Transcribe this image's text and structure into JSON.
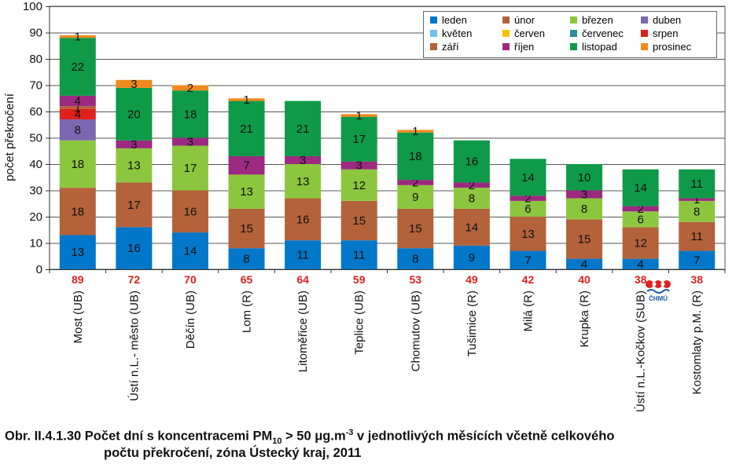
{
  "chart_data": {
    "type": "bar",
    "stacked": true,
    "ylabel": "počet překročení",
    "ylim": [
      0,
      100
    ],
    "yticks": [
      0,
      10,
      20,
      30,
      40,
      50,
      60,
      70,
      80,
      90,
      100
    ],
    "grid": true,
    "legend_position": "top-right",
    "categories": [
      "Most (UB)",
      "Ústí n.L.- město (UB)",
      "Děčín (UB)",
      "Lom (R)",
      "Litoměřice (UB)",
      "Teplice (UB)",
      "Chomutov (UB)",
      "Tušimice (R)",
      "Milá (R)",
      "Krupka (R)",
      "Ústí n.L.-Kočkov (SUB)",
      "Kostomlaty p.M. (R)"
    ],
    "totals": [
      89,
      72,
      70,
      65,
      64,
      59,
      53,
      49,
      42,
      40,
      38,
      38
    ],
    "totals_color": "#e02020",
    "series": [
      {
        "name": "leden",
        "color": "#0077c8",
        "values": [
          13,
          16,
          14,
          8,
          11,
          11,
          8,
          9,
          7,
          4,
          4,
          7
        ]
      },
      {
        "name": "únor",
        "color": "#b3623a",
        "values": [
          18,
          17,
          16,
          15,
          16,
          15,
          15,
          14,
          13,
          15,
          12,
          11
        ]
      },
      {
        "name": "březen",
        "color": "#8cc63f",
        "values": [
          18,
          13,
          17,
          13,
          13,
          12,
          9,
          8,
          6,
          8,
          6,
          8
        ]
      },
      {
        "name": "duben",
        "color": "#7b68b0",
        "values": [
          8,
          0,
          0,
          0,
          0,
          0,
          0,
          0,
          0,
          0,
          0,
          0
        ]
      },
      {
        "name": "květen",
        "color": "#6ec1e8",
        "values": [
          0,
          0,
          0,
          0,
          0,
          0,
          0,
          0,
          0,
          0,
          0,
          0
        ]
      },
      {
        "name": "červen",
        "color": "#f5c400",
        "values": [
          0,
          0,
          0,
          0,
          0,
          0,
          0,
          0,
          0,
          0,
          0,
          0
        ]
      },
      {
        "name": "červenec",
        "color": "#2e8b9a",
        "values": [
          0,
          0,
          0,
          0,
          0,
          0,
          0,
          0,
          0,
          0,
          0,
          0
        ]
      },
      {
        "name": "srpen",
        "color": "#e0201b",
        "values": [
          4,
          0,
          0,
          0,
          0,
          0,
          0,
          0,
          0,
          0,
          0,
          0
        ]
      },
      {
        "name": "září",
        "color": "#b3623a",
        "values": [
          1,
          0,
          0,
          0,
          0,
          0,
          0,
          0,
          0,
          0,
          0,
          0
        ]
      },
      {
        "name": "říjen",
        "color": "#9b2a80",
        "values": [
          4,
          3,
          3,
          7,
          3,
          3,
          2,
          2,
          2,
          3,
          2,
          1
        ]
      },
      {
        "name": "listopad",
        "color": "#0e9a48",
        "values": [
          22,
          20,
          18,
          21,
          21,
          17,
          18,
          16,
          14,
          10,
          14,
          11
        ]
      },
      {
        "name": "prosinec",
        "color": "#f08a1e",
        "values": [
          1,
          3,
          2,
          1,
          0,
          1,
          1,
          0,
          0,
          0,
          0,
          0
        ]
      }
    ]
  },
  "logo_text": "ČHMÚ",
  "caption": {
    "line1_prefix": "Obr. II.4.1.30  Počet dní s koncentracemi PM",
    "line1_sub": "10",
    "line1_mid": " > 50 μg.m",
    "line1_sup": "-3",
    "line1_suffix": " v jednotlivých měsících včetně celkového",
    "line2": "počtu překročení, zóna Ústecký kraj, 2011"
  }
}
